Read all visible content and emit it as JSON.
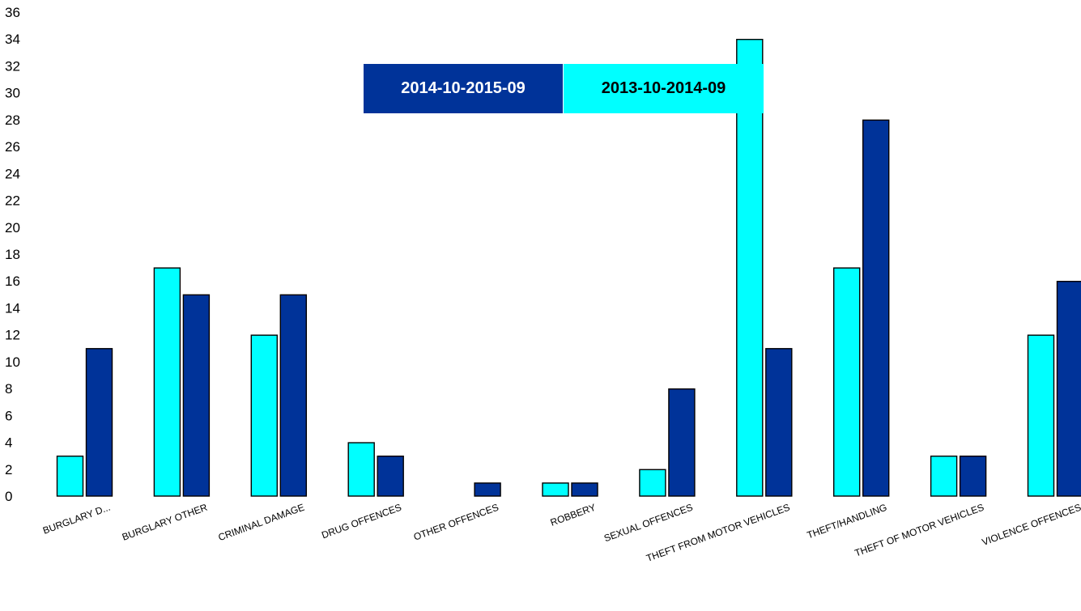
{
  "chart_data": {
    "type": "bar",
    "title": "",
    "xlabel": "",
    "ylabel": "",
    "ylim": [
      0,
      36
    ],
    "yticks": [
      0,
      2,
      4,
      6,
      8,
      10,
      12,
      14,
      16,
      18,
      20,
      22,
      24,
      26,
      28,
      30,
      32,
      34,
      36
    ],
    "categories": [
      "BURGLARY D...",
      "BURGLARY OTHER",
      "CRIMINAL DAMAGE",
      "DRUG OFFENCES",
      "OTHER OFFENCES",
      "ROBBERY",
      "SEXUAL OFFENCES",
      "THEFT FROM MOTOR VEHICLES",
      "THEFT/HANDLING",
      "THEFT OF MOTOR VEHICLES",
      "VIOLENCE OFFENCES"
    ],
    "series": [
      {
        "name": "2013-10-2014-09",
        "color": "#00ffff",
        "values": [
          3,
          17,
          12,
          4,
          0,
          1,
          2,
          34,
          17,
          3,
          12
        ]
      },
      {
        "name": "2014-10-2015-09",
        "color": "#003399",
        "values": [
          11,
          15,
          15,
          3,
          1,
          1,
          8,
          11,
          28,
          3,
          16
        ]
      }
    ],
    "legend": {
      "placement": "top-center",
      "items": [
        {
          "label": "2014-10-2015-09",
          "color": "#003399",
          "text_color": "#ffffff"
        },
        {
          "label": "2013-10-2014-09",
          "color": "#00ffff",
          "text_color": "#000000"
        }
      ]
    },
    "grid": false
  }
}
